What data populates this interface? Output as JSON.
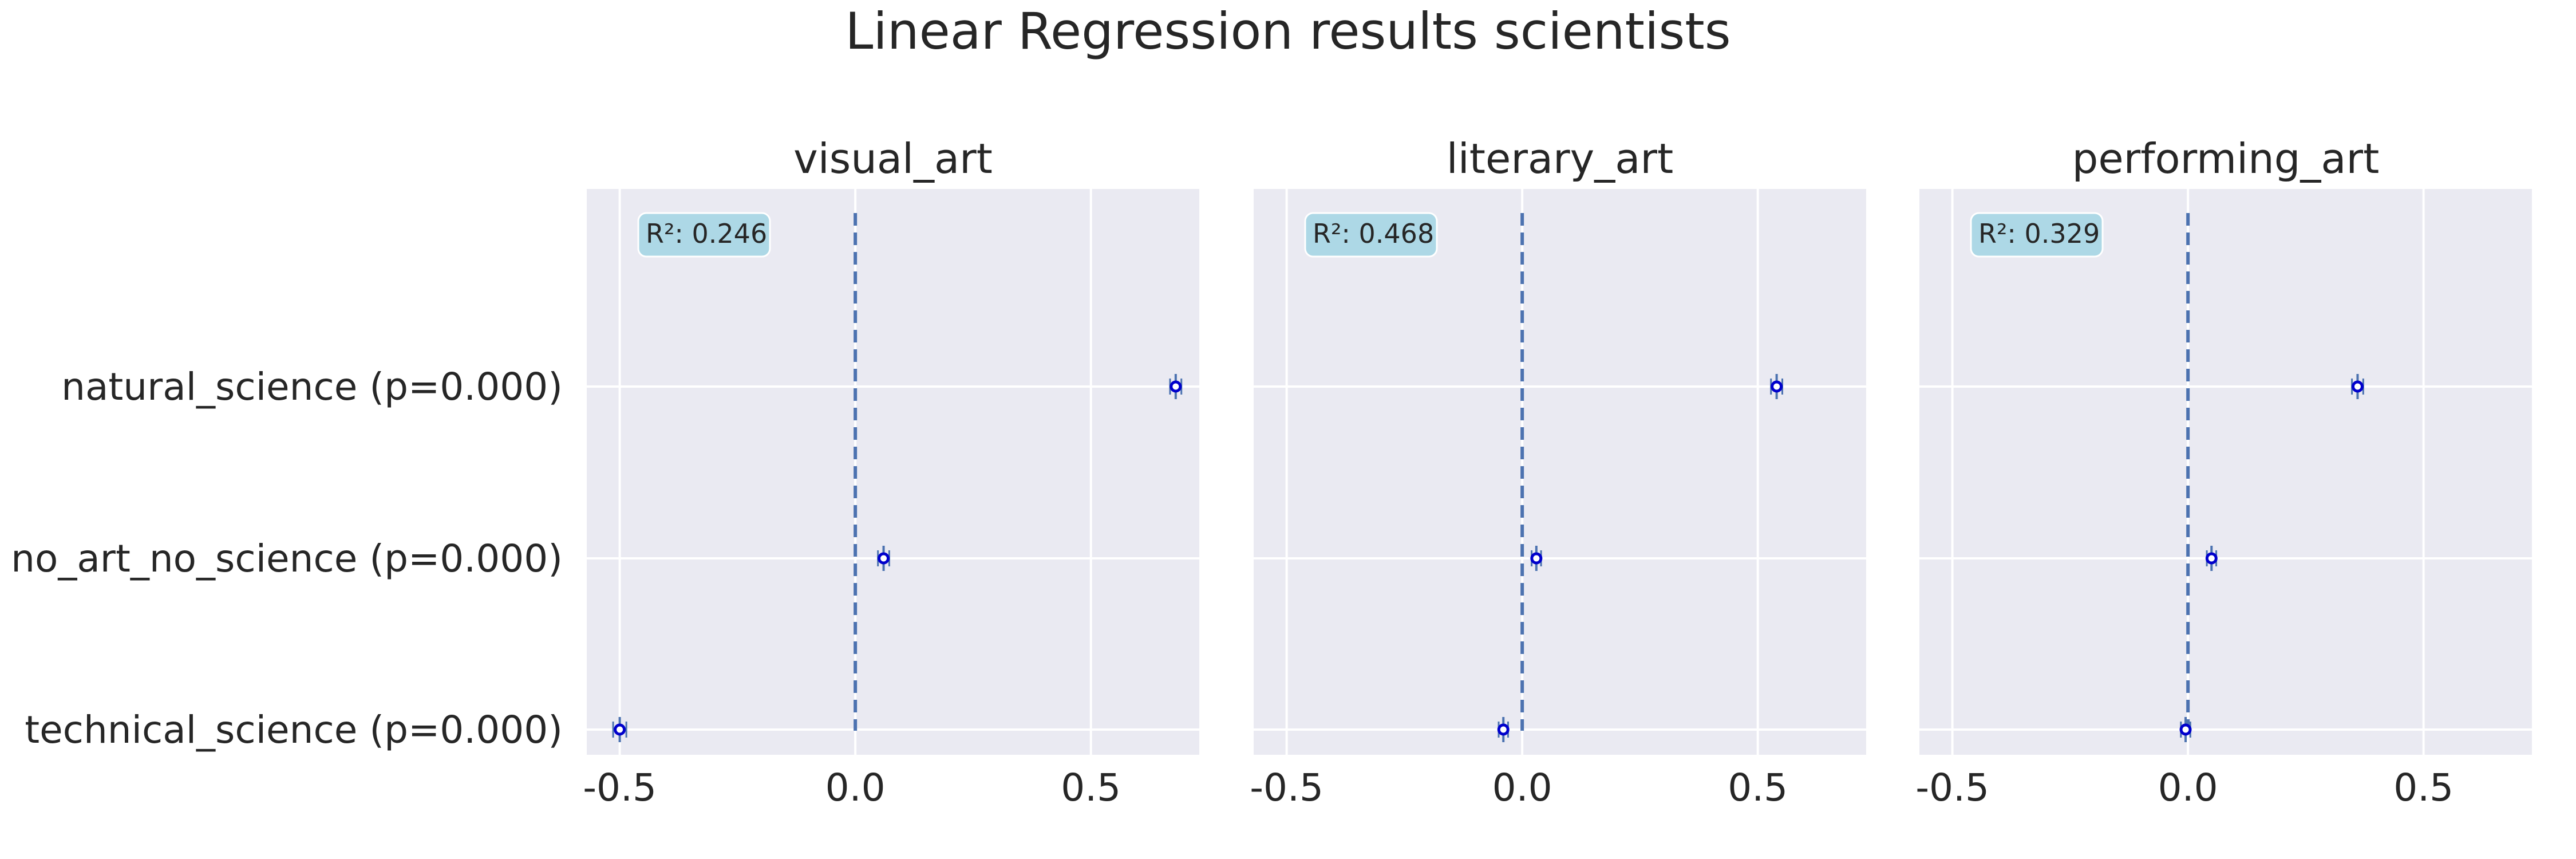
{
  "figure": {
    "title": "Linear Regression results scientists"
  },
  "chart_data": [
    {
      "type": "scatter",
      "title": "visual_art",
      "categories": [
        "technical_science (p=0.000)",
        "no_art_no_science (p=0.000)",
        "natural_science (p=0.000)"
      ],
      "x_ticks": [
        -0.5,
        0.0,
        0.5
      ],
      "x_tick_labels": [
        "-0.5",
        "0.0",
        "0.5"
      ],
      "xlim": [
        -0.57,
        0.73
      ],
      "coefficients": [
        -0.5,
        0.06,
        0.68
      ],
      "ci_half_widths": [
        0.014,
        0.012,
        0.012
      ],
      "reference_line_x": 0,
      "annotation": "R²: 0.246",
      "grid": true
    },
    {
      "type": "scatter",
      "title": "literary_art",
      "categories": [
        "technical_science (p=0.000)",
        "no_art_no_science (p=0.000)",
        "natural_science (p=0.000)"
      ],
      "x_ticks": [
        -0.5,
        0.0,
        0.5
      ],
      "x_tick_labels": [
        "-0.5",
        "0.0",
        "0.5"
      ],
      "xlim": [
        -0.57,
        0.73
      ],
      "coefficients": [
        -0.04,
        0.03,
        0.54
      ],
      "ci_half_widths": [
        0.01,
        0.01,
        0.012
      ],
      "reference_line_x": 0,
      "annotation": "R²: 0.468",
      "grid": true
    },
    {
      "type": "scatter",
      "title": "performing_art",
      "categories": [
        "technical_science (p=0.000)",
        "no_art_no_science (p=0.000)",
        "natural_science (p=0.000)"
      ],
      "x_ticks": [
        -0.5,
        0.0,
        0.5
      ],
      "x_tick_labels": [
        "-0.5",
        "0.0",
        "0.5"
      ],
      "xlim": [
        -0.57,
        0.73
      ],
      "coefficients": [
        -0.005,
        0.05,
        0.36
      ],
      "ci_half_widths": [
        0.01,
        0.01,
        0.012
      ],
      "reference_line_x": 0,
      "annotation": "R²: 0.329",
      "grid": true
    }
  ],
  "colors": {
    "axes_background": "#eaeaf2",
    "grid": "#ffffff",
    "marker": "#0000cc",
    "errorbar": "#4c72b0",
    "reference_line": "#4c72b0",
    "annotation_box": "#add8e6",
    "text": "#262626"
  }
}
